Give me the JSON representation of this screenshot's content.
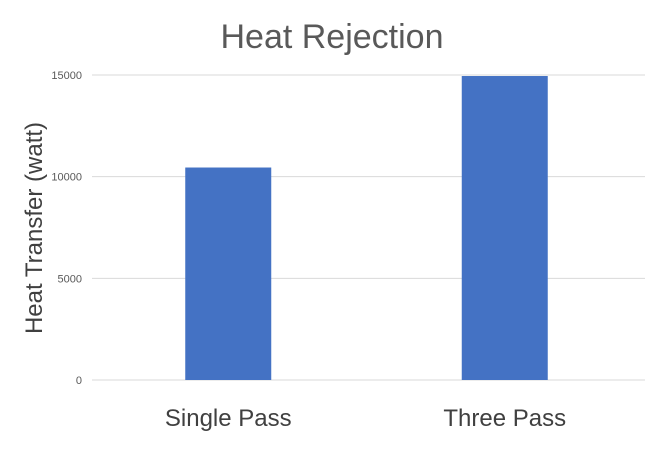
{
  "chart_data": {
    "type": "bar",
    "title": "Heat Rejection",
    "xlabel": "",
    "ylabel": "Heat Transfer (watt)",
    "categories": [
      "Single Pass",
      "Three Pass"
    ],
    "values": [
      10450,
      14950
    ],
    "ylim": [
      0,
      15000
    ],
    "yticks": [
      0,
      5000,
      10000,
      15000
    ],
    "grid": true,
    "legend": "none",
    "bar_color": "#4472c4"
  }
}
